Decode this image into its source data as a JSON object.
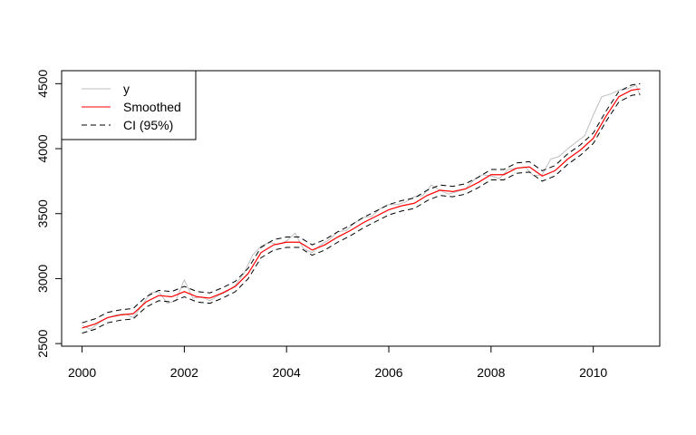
{
  "chart_data": {
    "type": "line",
    "title": "",
    "xlabel": "",
    "ylabel": "",
    "xlim": [
      1999.6,
      2011.3
    ],
    "ylim": [
      2480,
      4600
    ],
    "xticks": [
      2000,
      2002,
      2004,
      2006,
      2008,
      2010
    ],
    "xtick_labels": [
      "2000",
      "2002",
      "2004",
      "2006",
      "2008",
      "2010"
    ],
    "yticks": [
      2500,
      3000,
      3500,
      4000,
      4500
    ],
    "ytick_labels": [
      "2500",
      "3000",
      "3500",
      "4000",
      "4500"
    ],
    "grid": false,
    "legend_position": "top-left",
    "ci_halfwidth": 40,
    "series": [
      {
        "name": "y",
        "color": "#bebebe",
        "x": [
          2000.0,
          2000.1667,
          2000.3333,
          2000.5,
          2000.6667,
          2000.8333,
          2001.0,
          2001.1667,
          2001.3333,
          2001.5,
          2001.6667,
          2001.8333,
          2002.0,
          2002.1667,
          2002.3333,
          2002.5,
          2002.6667,
          2002.8333,
          2003.0,
          2003.1667,
          2003.3333,
          2003.5,
          2003.6667,
          2003.8333,
          2004.0,
          2004.1667,
          2004.3333,
          2004.5,
          2004.6667,
          2004.8333,
          2005.0,
          2005.1667,
          2005.3333,
          2005.5,
          2005.6667,
          2005.8333,
          2006.0,
          2006.1667,
          2006.3333,
          2006.5,
          2006.6667,
          2006.8333,
          2007.0,
          2007.1667,
          2007.3333,
          2007.5,
          2007.6667,
          2007.8333,
          2008.0,
          2008.1667,
          2008.3333,
          2008.5,
          2008.6667,
          2008.8333,
          2009.0,
          2009.1667,
          2009.3333,
          2009.5,
          2009.6667,
          2009.8333,
          2010.0,
          2010.1667,
          2010.3333,
          2010.5,
          2010.6667,
          2010.8333,
          2010.9167
        ],
        "y": [
          2640,
          2610,
          2660,
          2700,
          2720,
          2730,
          2700,
          2790,
          2890,
          2900,
          2810,
          2830,
          2990,
          2850,
          2860,
          2830,
          2870,
          2900,
          2950,
          3040,
          3180,
          3250,
          3280,
          3260,
          3290,
          3350,
          3230,
          3200,
          3260,
          3300,
          3360,
          3370,
          3430,
          3470,
          3480,
          3540,
          3570,
          3570,
          3590,
          3630,
          3640,
          3720,
          3680,
          3650,
          3670,
          3690,
          3760,
          3800,
          3790,
          3770,
          3840,
          3850,
          3860,
          3790,
          3800,
          3920,
          3940,
          4000,
          4050,
          4100,
          4260,
          4400,
          4420,
          4450,
          4460,
          4490,
          4410
        ]
      },
      {
        "name": "Smoothed",
        "color": "#ff0000",
        "x": [
          2000.0,
          2000.25,
          2000.5,
          2000.75,
          2001.0,
          2001.25,
          2001.5,
          2001.75,
          2002.0,
          2002.25,
          2002.5,
          2002.75,
          2003.0,
          2003.25,
          2003.5,
          2003.75,
          2004.0,
          2004.25,
          2004.5,
          2004.75,
          2005.0,
          2005.25,
          2005.5,
          2005.75,
          2006.0,
          2006.25,
          2006.5,
          2006.75,
          2007.0,
          2007.25,
          2007.5,
          2007.75,
          2008.0,
          2008.25,
          2008.5,
          2008.75,
          2009.0,
          2009.25,
          2009.5,
          2009.75,
          2010.0,
          2010.25,
          2010.5,
          2010.75,
          2010.9167
        ],
        "y": [
          2620,
          2650,
          2700,
          2720,
          2730,
          2820,
          2870,
          2860,
          2900,
          2860,
          2850,
          2890,
          2940,
          3040,
          3200,
          3260,
          3280,
          3280,
          3220,
          3260,
          3320,
          3370,
          3430,
          3480,
          3530,
          3560,
          3580,
          3640,
          3680,
          3670,
          3690,
          3740,
          3800,
          3800,
          3850,
          3860,
          3790,
          3830,
          3920,
          3990,
          4080,
          4250,
          4400,
          4450,
          4460
        ]
      },
      {
        "name": "CI (95%)",
        "color": "#000000",
        "dash": "6 4"
      }
    ]
  }
}
